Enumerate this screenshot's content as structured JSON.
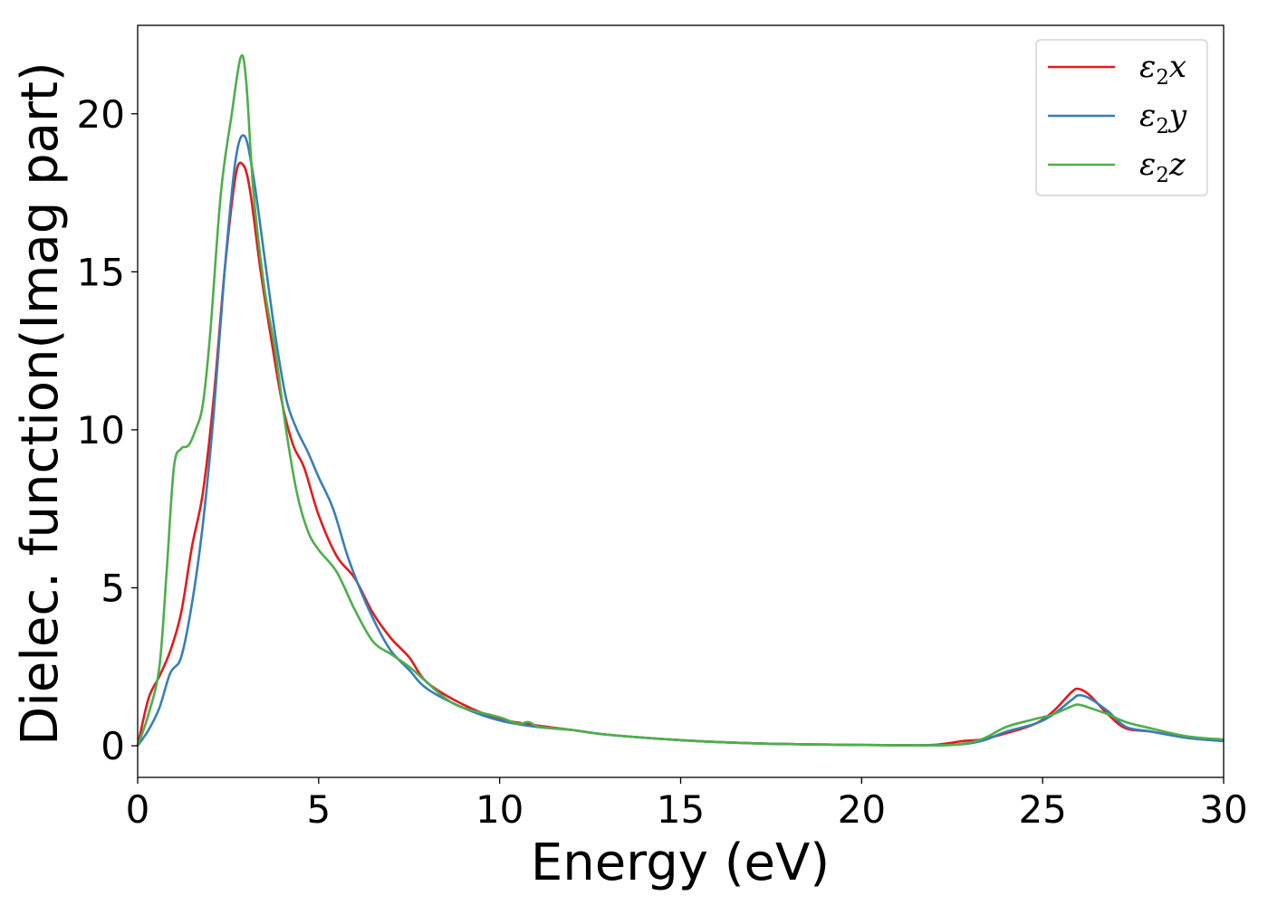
{
  "chart_data": {
    "type": "line",
    "xlabel": "Energy (eV)",
    "ylabel": "Dielec. function(Imag part)",
    "xlim": [
      0,
      30
    ],
    "ylim": [
      -1,
      22.8
    ],
    "xticks": [
      0,
      5,
      10,
      15,
      20,
      25,
      30
    ],
    "yticks": [
      0,
      5,
      10,
      15,
      20
    ],
    "grid": false,
    "legend_position": "top-right",
    "series": [
      {
        "name": "ε2x",
        "legend": {
          "base": "ε",
          "sub": "2",
          "tail": "x"
        },
        "color": "#e41a1c",
        "x": [
          0,
          0.3,
          0.6,
          0.9,
          1.2,
          1.5,
          1.8,
          2.1,
          2.4,
          2.7,
          2.9,
          3.1,
          3.4,
          3.7,
          4.0,
          4.3,
          4.6,
          5.0,
          5.5,
          6.0,
          6.5,
          7.0,
          7.5,
          8.0,
          9.0,
          10.0,
          11.0,
          12.0,
          13.0,
          15.0,
          17.0,
          19.0,
          21.0,
          22.0,
          22.8,
          23.3,
          24.0,
          24.8,
          25.3,
          25.8,
          26.0,
          26.3,
          26.8,
          27.3,
          28.0,
          29.0,
          30.0
        ],
        "y": [
          0,
          1.5,
          2.2,
          3.0,
          4.2,
          6.3,
          8.0,
          11.0,
          15.0,
          18.0,
          18.4,
          17.6,
          15.0,
          12.8,
          10.8,
          9.5,
          8.8,
          7.3,
          6.0,
          5.3,
          4.2,
          3.4,
          2.8,
          2.0,
          1.3,
          0.85,
          0.65,
          0.5,
          0.35,
          0.18,
          0.08,
          0.04,
          0.02,
          0.03,
          0.15,
          0.2,
          0.4,
          0.7,
          1.1,
          1.7,
          1.8,
          1.6,
          1.0,
          0.55,
          0.45,
          0.25,
          0.15
        ]
      },
      {
        "name": "ε2y",
        "legend": {
          "base": "ε",
          "sub": "2",
          "tail": "y"
        },
        "color": "#377eb8",
        "x": [
          0,
          0.3,
          0.6,
          0.9,
          1.2,
          1.5,
          1.8,
          2.1,
          2.4,
          2.7,
          2.95,
          3.2,
          3.5,
          3.8,
          4.1,
          4.4,
          4.7,
          5.0,
          5.4,
          5.8,
          6.2,
          6.6,
          7.0,
          7.5,
          8.0,
          9.0,
          10.0,
          11.0,
          12.0,
          13.0,
          15.0,
          17.0,
          19.0,
          21.0,
          22.5,
          23.3,
          24.0,
          24.8,
          25.3,
          25.8,
          26.0,
          26.3,
          26.8,
          27.3,
          28.0,
          29.0,
          30.0
        ],
        "y": [
          0,
          0.5,
          1.2,
          2.3,
          2.8,
          4.5,
          7.0,
          10.5,
          15.0,
          18.5,
          19.3,
          18.0,
          15.5,
          13.0,
          11.0,
          10.0,
          9.3,
          8.5,
          7.5,
          6.0,
          4.8,
          3.8,
          3.0,
          2.4,
          1.8,
          1.2,
          0.8,
          0.6,
          0.5,
          0.35,
          0.18,
          0.08,
          0.04,
          0.02,
          0.03,
          0.15,
          0.45,
          0.7,
          1.0,
          1.45,
          1.6,
          1.5,
          1.1,
          0.6,
          0.45,
          0.25,
          0.15
        ]
      },
      {
        "name": "ε2z",
        "legend": {
          "base": "ε",
          "sub": "2",
          "tail": "z"
        },
        "color": "#4daf4a",
        "x": [
          0,
          0.3,
          0.6,
          0.8,
          1.0,
          1.2,
          1.4,
          1.6,
          1.8,
          2.0,
          2.3,
          2.6,
          2.85,
          3.0,
          3.2,
          3.5,
          3.8,
          4.1,
          4.4,
          4.7,
          5.0,
          5.5,
          6.0,
          6.5,
          7.0,
          7.5,
          8.0,
          8.5,
          9.0,
          10.0,
          10.5,
          10.8,
          11.1,
          12.0,
          13.0,
          15.0,
          17.0,
          19.0,
          21.0,
          22.5,
          23.3,
          24.0,
          24.8,
          25.3,
          25.8,
          26.0,
          26.3,
          26.8,
          27.3,
          28.0,
          29.0,
          30.0
        ],
        "y": [
          0,
          1.0,
          2.5,
          5.5,
          8.8,
          9.4,
          9.5,
          10.0,
          10.8,
          13.0,
          17.5,
          20.0,
          21.8,
          21.0,
          17.5,
          14.5,
          12.5,
          10.0,
          8.0,
          6.8,
          6.2,
          5.5,
          4.3,
          3.3,
          2.9,
          2.5,
          2.0,
          1.5,
          1.2,
          0.9,
          0.7,
          0.75,
          0.6,
          0.5,
          0.35,
          0.18,
          0.08,
          0.04,
          0.02,
          0.03,
          0.2,
          0.6,
          0.85,
          1.0,
          1.25,
          1.3,
          1.2,
          1.0,
          0.75,
          0.55,
          0.3,
          0.2
        ]
      }
    ]
  }
}
